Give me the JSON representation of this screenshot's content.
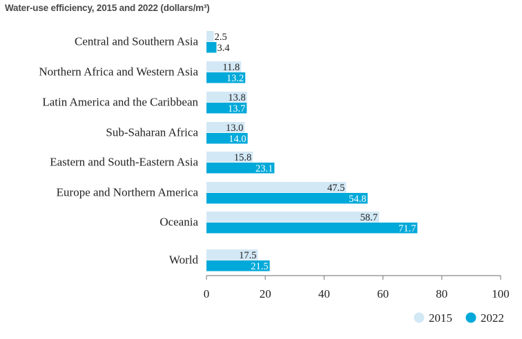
{
  "chart_data": {
    "type": "bar",
    "orientation": "horizontal",
    "title": "Water-use efficiency, 2015 and 2022 (dollars/m³)",
    "categories": [
      "Central and Southern Asia",
      "Northern Africa and Western Asia",
      "Latin America and the Caribbean",
      "Sub-Saharan Africa",
      "Eastern and South-Eastern Asia",
      "Europe and Northern America",
      "Oceania",
      "World"
    ],
    "series": [
      {
        "name": "2015",
        "color": "#d3e8f5",
        "label_color": "#222222",
        "values": [
          2.5,
          11.8,
          13.8,
          13.0,
          15.8,
          47.5,
          58.7,
          17.5
        ],
        "labels": [
          "2.5",
          "11.8",
          "13.8",
          "13.0",
          "15.8",
          "47.5",
          "58.7",
          "17.5"
        ]
      },
      {
        "name": "2022",
        "color": "#00a9d9",
        "label_color": "#ffffff",
        "values": [
          3.4,
          13.2,
          13.7,
          14.0,
          23.1,
          54.8,
          71.7,
          21.5
        ],
        "labels": [
          "3.4",
          "13.2",
          "13.7",
          "14.0",
          "23.1",
          "54.8",
          "71.7",
          "21.5"
        ]
      }
    ],
    "xlim": [
      0,
      100
    ],
    "xticks": [
      "0",
      "20",
      "40",
      "60",
      "80",
      "100"
    ],
    "xtick_values": [
      0,
      20,
      40,
      60,
      80,
      100
    ],
    "xlabel": "",
    "ylabel": "",
    "grid": false,
    "legend_position": "bottom-right"
  }
}
